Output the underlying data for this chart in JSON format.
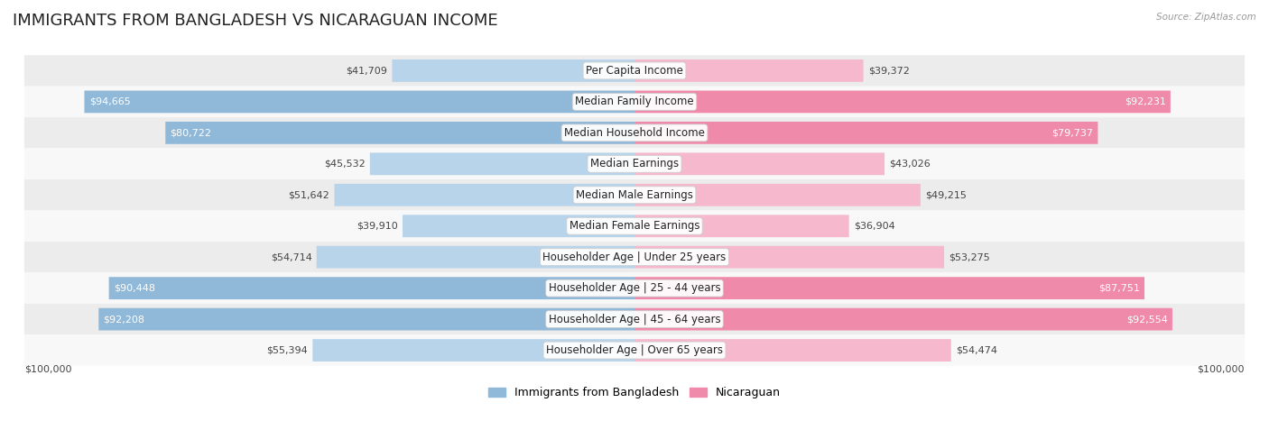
{
  "title": "IMMIGRANTS FROM BANGLADESH VS NICARAGUAN INCOME",
  "source": "Source: ZipAtlas.com",
  "categories": [
    "Per Capita Income",
    "Median Family Income",
    "Median Household Income",
    "Median Earnings",
    "Median Male Earnings",
    "Median Female Earnings",
    "Householder Age | Under 25 years",
    "Householder Age | 25 - 44 years",
    "Householder Age | 45 - 64 years",
    "Householder Age | Over 65 years"
  ],
  "bangladesh_values": [
    41709,
    94665,
    80722,
    45532,
    51642,
    39910,
    54714,
    90448,
    92208,
    55394
  ],
  "nicaraguan_values": [
    39372,
    92231,
    79737,
    43026,
    49215,
    36904,
    53275,
    87751,
    92554,
    54474
  ],
  "max_value": 100000,
  "bangladesh_color": "#90b8d8",
  "nicaraguan_color": "#f08aaa",
  "bangladesh_color_light": "#b8d4ea",
  "nicaraguan_color_light": "#f5b8cc",
  "bangladesh_label": "Immigrants from Bangladesh",
  "nicaraguan_label": "Nicaraguan",
  "row_bg_even": "#ececec",
  "row_bg_odd": "#f8f8f8",
  "bar_height": 0.72,
  "xlabel_left": "$100,000",
  "xlabel_right": "$100,000",
  "title_fontsize": 13,
  "label_fontsize": 8.5,
  "value_fontsize": 8,
  "inside_threshold": 65000
}
